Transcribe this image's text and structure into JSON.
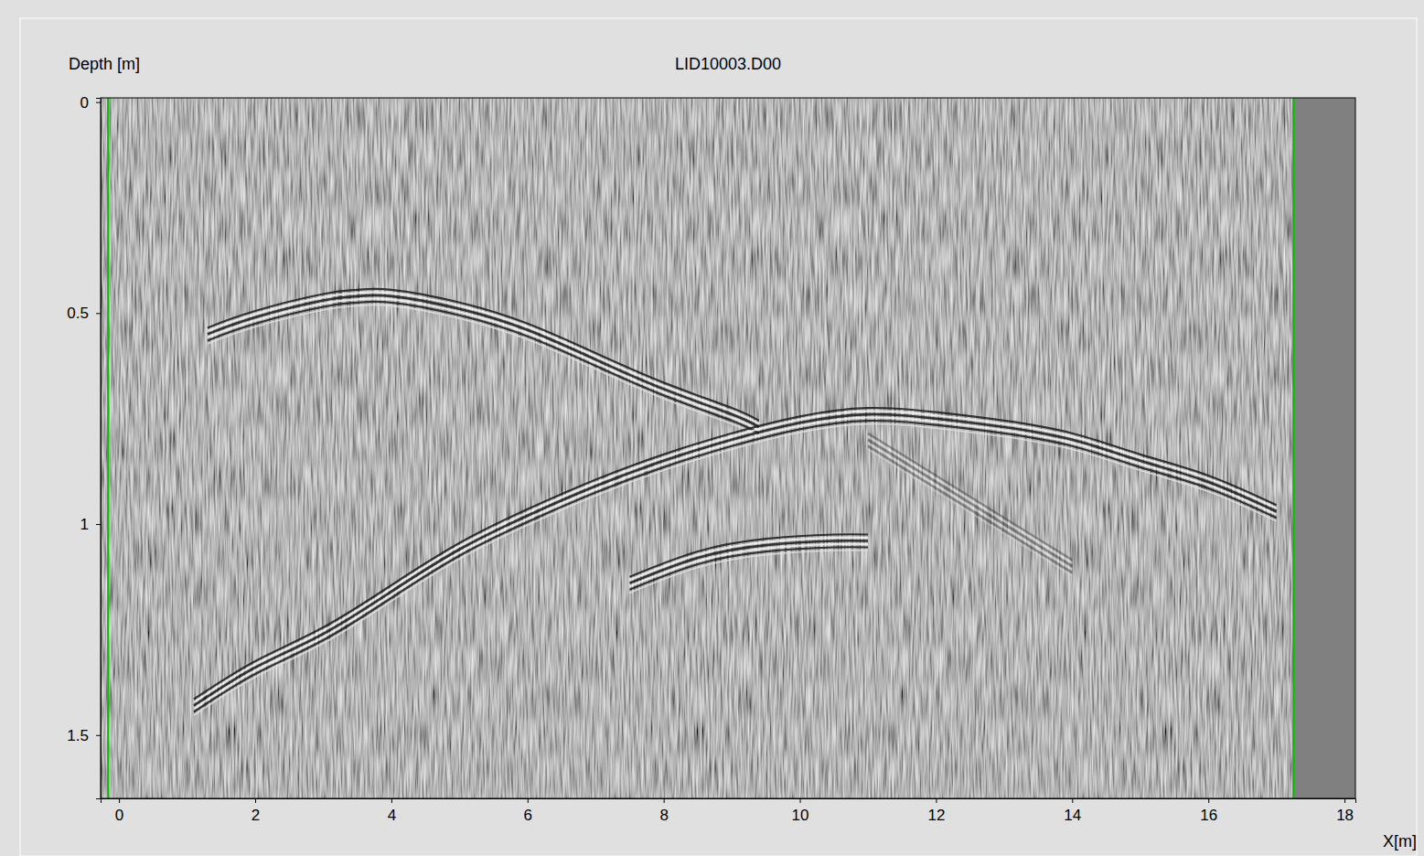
{
  "chart_data": {
    "type": "line",
    "title": "LID10003.D00",
    "y_label": "Depth [m]",
    "x_label": "X[m]",
    "xlim": [
      -0.27,
      18.16
    ],
    "ylim": [
      -0.01,
      1.65
    ],
    "xticks": [
      0,
      2,
      4,
      6,
      8,
      10,
      12,
      14,
      16,
      18
    ],
    "yticks": [
      0,
      0.5,
      1,
      1.5
    ],
    "data_range": [
      -0.16,
      17.25
    ],
    "series": [
      {
        "color": "#1a1a1a",
        "x": [
          1.3,
          2,
          3,
          3.5,
          4,
          5,
          6,
          7,
          8,
          9,
          9.4
        ],
        "values": [
          0.55,
          0.51,
          0.47,
          0.46,
          0.46,
          0.49,
          0.54,
          0.61,
          0.68,
          0.74,
          0.77
        ]
      },
      {
        "color": "#1a1a1a",
        "x": [
          1.1,
          2,
          3,
          4,
          5,
          6,
          7,
          8,
          9,
          10,
          11,
          12,
          13,
          14,
          15,
          16,
          17
        ],
        "values": [
          1.43,
          1.34,
          1.26,
          1.16,
          1.06,
          0.98,
          0.91,
          0.85,
          0.8,
          0.76,
          0.74,
          0.75,
          0.77,
          0.8,
          0.85,
          0.9,
          0.97
        ]
      },
      {
        "color": "#1a1a1a",
        "x": [
          7.5,
          8.5,
          9.5,
          10.5,
          11
        ],
        "values": [
          1.14,
          1.08,
          1.05,
          1.04,
          1.04
        ]
      },
      {
        "color": "#3a3a3a",
        "x": [
          11,
          12,
          13,
          14
        ],
        "values": [
          0.8,
          0.9,
          1.0,
          1.1
        ]
      }
    ]
  }
}
